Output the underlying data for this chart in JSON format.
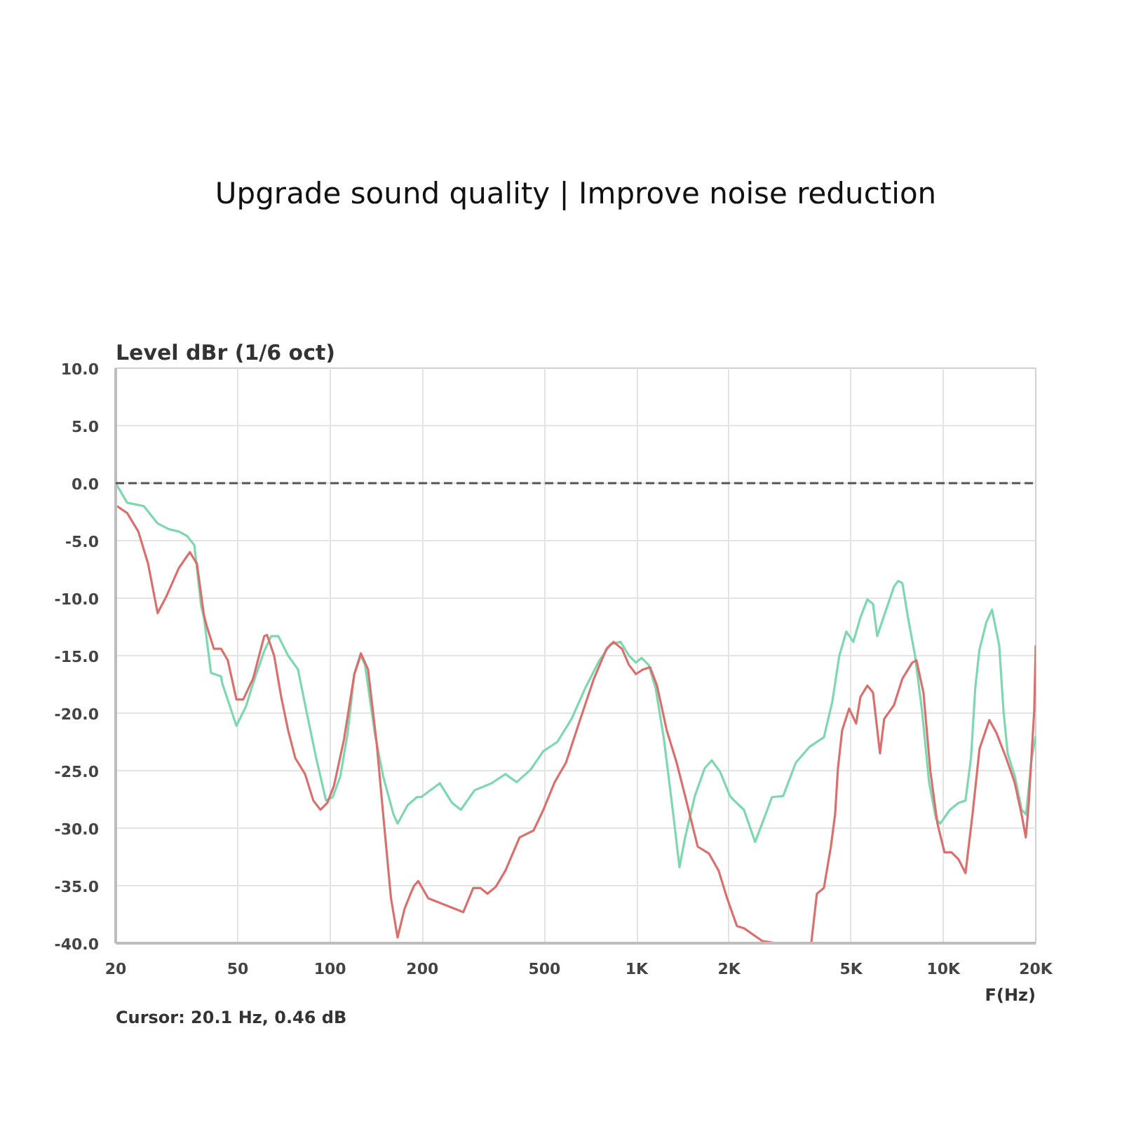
{
  "chart_data": {
    "type": "line",
    "title": "Upgrade sound quality | Improve noise reduction",
    "ylabel": "Level dBr (1/6 oct)",
    "xlabel": "F(Hz)",
    "annotations": [
      "Cursor: 20.1 Hz, 0.46 dB"
    ],
    "log": "x",
    "xlim": [
      20,
      20000
    ],
    "ylim": [
      -40,
      10
    ],
    "xticks": [
      20,
      50,
      100,
      200,
      500,
      {
        "value": 1000,
        "label": "1K"
      },
      {
        "value": 2000,
        "label": "2K"
      },
      {
        "value": 5000,
        "label": "5K"
      },
      {
        "value": 10000,
        "label": "10K"
      },
      {
        "value": 20000,
        "label": "20K"
      }
    ],
    "yticks": [
      {
        "value": 10,
        "label": "10.0"
      },
      {
        "value": 5,
        "label": "5.0"
      },
      {
        "value": 0,
        "label": "0.0"
      },
      {
        "value": -5,
        "label": "-5.0"
      },
      {
        "value": -10,
        "label": "-10.0"
      },
      {
        "value": -15,
        "label": "-15.0"
      },
      {
        "value": -20,
        "label": "-20.0"
      },
      {
        "value": -25,
        "label": "-25.0"
      },
      {
        "value": -30,
        "label": "-30.0"
      },
      {
        "value": -35,
        "label": "-35.0"
      },
      {
        "value": -40,
        "label": "-40.0"
      }
    ],
    "grid": true,
    "line_style": "solid",
    "ref_lines": [
      {
        "axis": "y",
        "value": 0,
        "color": "#555555",
        "line_style": "dashed"
      }
    ],
    "series": [
      {
        "color": "#7dd8b0",
        "x": [
          20,
          21.8,
          24.7,
          27.4,
          29.8,
          32.1,
          34.2,
          36.1,
          38,
          38.8,
          40.9,
          44.1,
          44.5,
          49.5,
          53.2,
          56.1,
          61,
          64.3,
          67.8,
          73,
          78.6,
          83.7,
          90.1,
          97,
          102,
          108,
          114,
          120,
          126,
          130,
          140,
          149,
          161,
          166,
          179,
          192,
          198,
          228,
          250,
          267,
          296,
          336,
          373,
          406,
          451,
          496,
          551,
          613,
          680,
          756,
          823,
          886,
          943,
          994,
          1037,
          1093,
          1152,
          1227,
          1321,
          1378,
          1438,
          1547,
          1665,
          1756,
          1870,
          2013,
          2078,
          2236,
          2432,
          2564,
          2760,
          3002,
          3302,
          3668,
          4076,
          4342,
          4577,
          4824,
          5084,
          5360,
          5650,
          5893,
          6082,
          6410,
          6899,
          7120,
          7349,
          7666,
          8080,
          8517,
          8976,
          9461,
          9764,
          10500,
          11200,
          11800,
          12300,
          12700,
          13100,
          13800,
          14400,
          15200,
          15700,
          16200,
          17100,
          18000,
          18600,
          19400,
          20000
        ],
        "values": [
          0,
          -1.7,
          -2,
          -3.5,
          -4,
          -4.2,
          -4.6,
          -5.4,
          -10.7,
          -11.7,
          -16.5,
          -16.8,
          -17.4,
          -21.1,
          -19.4,
          -17.4,
          -14.6,
          -13.3,
          -13.3,
          -15,
          -16.2,
          -19.8,
          -23.9,
          -27.6,
          -27.3,
          -25.5,
          -21.8,
          -16.6,
          -15,
          -15.8,
          -21.8,
          -25.5,
          -28.8,
          -29.6,
          -28,
          -27.3,
          -27.3,
          -26.1,
          -27.8,
          -28.4,
          -26.7,
          -26.1,
          -25.3,
          -26,
          -24.9,
          -23.3,
          -22.5,
          -20.5,
          -17.8,
          -15.4,
          -14,
          -13.8,
          -15,
          -15.6,
          -15.2,
          -15.8,
          -17.8,
          -22.3,
          -29.2,
          -33.4,
          -30.8,
          -27.2,
          -24.8,
          -24.1,
          -25.1,
          -27.2,
          -27.6,
          -28.4,
          -31.2,
          -29.6,
          -27.3,
          -27.2,
          -24.3,
          -22.9,
          -22.1,
          -19,
          -15,
          -12.9,
          -13.8,
          -11.7,
          -10.1,
          -10.5,
          -13.3,
          -11.5,
          -9,
          -8.5,
          -8.7,
          -11.7,
          -15,
          -19.8,
          -26,
          -29.2,
          -29.6,
          -28.4,
          -27.8,
          -27.6,
          -23.9,
          -17.8,
          -14.5,
          -12.1,
          -11,
          -14.1,
          -19.8,
          -23.5,
          -25.5,
          -28.4,
          -28.8,
          -23.9,
          -22
        ]
      },
      {
        "color": "#d9706e",
        "x": [
          20.2,
          21.8,
          23.7,
          25.5,
          27.4,
          29.2,
          32.1,
          34.9,
          36.8,
          38.8,
          39.7,
          41.8,
          44.1,
          46.4,
          49.5,
          52.1,
          56.1,
          61,
          62.3,
          65.7,
          69.3,
          73,
          77,
          82.9,
          88.2,
          93,
          98,
          103,
          111,
          120,
          126,
          133,
          142,
          149,
          158,
          166,
          175,
          183,
          188,
          194,
          209,
          228,
          272,
          293,
          309,
          326,
          347,
          373,
          415,
          461,
          496,
          540,
          588,
          653,
          725,
          797,
          840,
          895,
          943,
          994,
          1048,
          1105,
          1164,
          1253,
          1349,
          1438,
          1580,
          1719,
          1850,
          1971,
          2121,
          2236,
          2564,
          2848,
          3200,
          3707,
          3867,
          4076,
          4296,
          4434,
          4529,
          4674,
          4926,
          5193,
          5360,
          5650,
          5893,
          6211,
          6410,
          6899,
          7349,
          7912,
          8166,
          8607,
          9071,
          9561,
          10079,
          10623,
          11197,
          11802,
          12441,
          13113,
          14117,
          14882,
          16019,
          17063,
          17983,
          18561,
          18957,
          19771,
          20000
        ],
        "values": [
          -2,
          -2.6,
          -4.2,
          -7,
          -11.3,
          -9.9,
          -7.4,
          -6,
          -7,
          -11.5,
          -12.5,
          -14.4,
          -14.4,
          -15.4,
          -18.8,
          -18.8,
          -17,
          -13.3,
          -13.2,
          -15,
          -18.6,
          -21.5,
          -23.9,
          -25.3,
          -27.6,
          -28.4,
          -27.8,
          -26.3,
          -22.3,
          -16.6,
          -14.8,
          -16.2,
          -22.7,
          -28.8,
          -36.1,
          -39.5,
          -37,
          -35.7,
          -35,
          -34.6,
          -36.1,
          -36.5,
          -37.3,
          -35.2,
          -35.2,
          -35.7,
          -35.1,
          -33.7,
          -30.8,
          -30.2,
          -28.4,
          -26,
          -24.3,
          -20.6,
          -17,
          -14.4,
          -13.8,
          -14.4,
          -15.8,
          -16.6,
          -16.2,
          -16,
          -17.6,
          -21.5,
          -24.3,
          -27.2,
          -31.6,
          -32.2,
          -33.7,
          -36.1,
          -38.5,
          -38.7,
          -39.8,
          -40,
          null,
          -40,
          -35.7,
          -35.2,
          -31.6,
          -28.8,
          -24.8,
          -21.5,
          -19.6,
          -20.9,
          -18.6,
          -17.6,
          -18.2,
          -23.5,
          -20.5,
          -19.3,
          -17,
          -15.6,
          -15.4,
          -18.2,
          -25.1,
          -29.6,
          -32.1,
          -32.1,
          -32.7,
          -33.9,
          -28.8,
          -23.1,
          -20.6,
          -21.7,
          -23.9,
          -26,
          -28.8,
          -30.8,
          -28,
          -19.8,
          -14.1
        ]
      }
    ]
  }
}
